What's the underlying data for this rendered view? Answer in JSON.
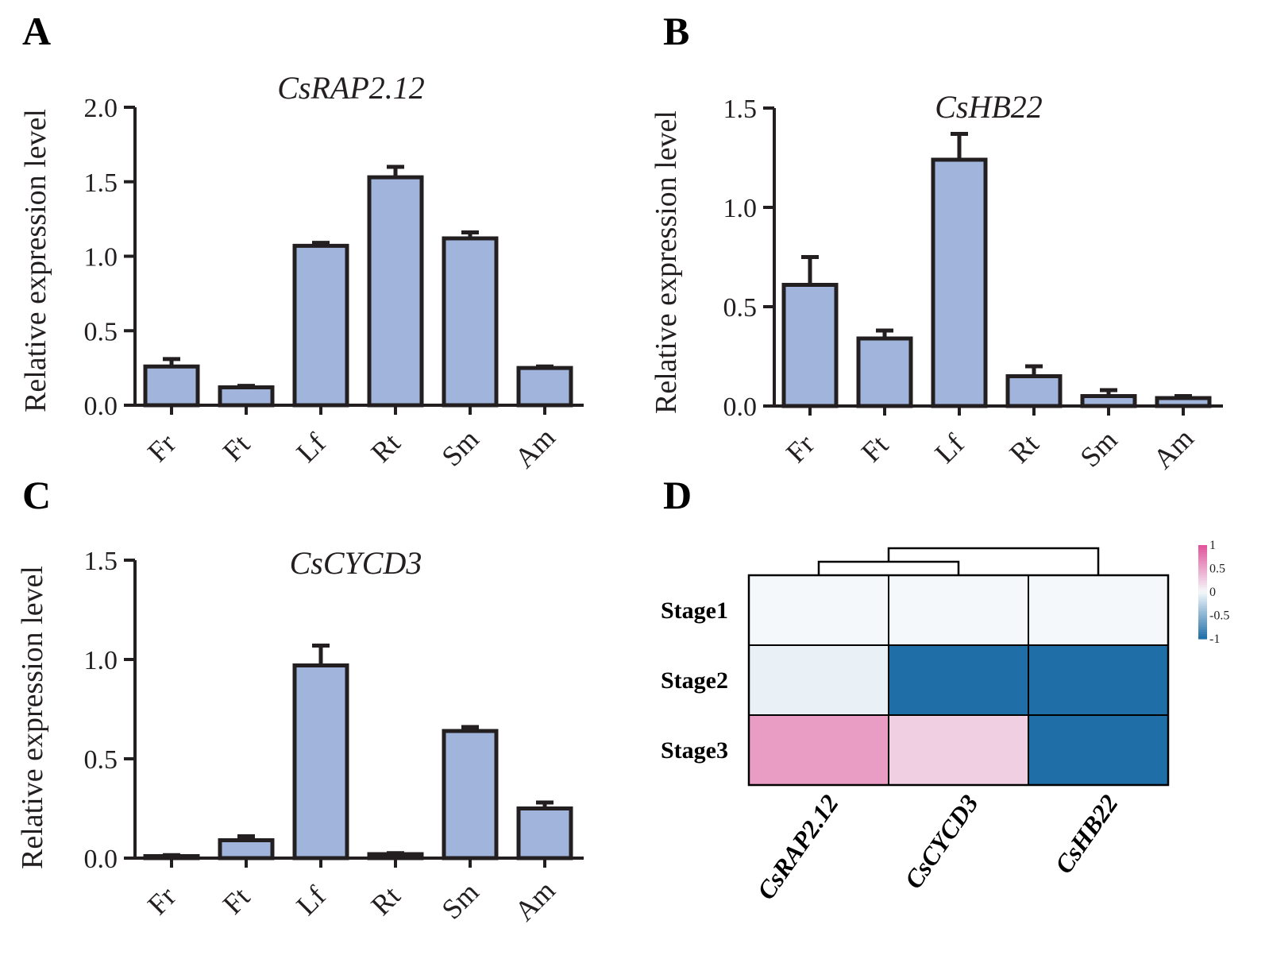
{
  "panels": [
    "A",
    "B",
    "C",
    "D"
  ],
  "colors": {
    "bar_fill": "#a0b4dc",
    "bar_stroke": "#231f20",
    "heat_high": "#e0529a",
    "heat_mid": "#f5f8fa",
    "heat_low": "#1f6ea8"
  },
  "chart_data": [
    {
      "type": "bar",
      "panel": "A",
      "title": "CsRAP2.12",
      "ylabel": "Relative expression level",
      "xlabel": "",
      "categories": [
        "Fr",
        "Ft",
        "Lf",
        "Rt",
        "Sm",
        "Am"
      ],
      "values": [
        0.26,
        0.12,
        1.07,
        1.53,
        1.12,
        0.25
      ],
      "errors": [
        0.05,
        0.01,
        0.02,
        0.07,
        0.04,
        0.01
      ],
      "ylim": [
        0,
        2.0
      ],
      "yticks": [
        "0.0",
        "0.5",
        "1.0",
        "1.5",
        "2.0"
      ],
      "grid": false
    },
    {
      "type": "bar",
      "panel": "B",
      "title": "CsHB22",
      "ylabel": "Relative expression level",
      "xlabel": "",
      "categories": [
        "Fr",
        "Ft",
        "Lf",
        "Rt",
        "Sm",
        "Am"
      ],
      "values": [
        0.61,
        0.34,
        1.24,
        0.15,
        0.05,
        0.04
      ],
      "errors": [
        0.14,
        0.04,
        0.13,
        0.05,
        0.03,
        0.01
      ],
      "ylim": [
        0,
        1.5
      ],
      "yticks": [
        "0.0",
        "0.5",
        "1.0",
        "1.5"
      ],
      "grid": false
    },
    {
      "type": "bar",
      "panel": "C",
      "title": "CsCYCD3",
      "ylabel": "Relative expression level",
      "xlabel": "",
      "categories": [
        "Fr",
        "Ft",
        "Lf",
        "Rt",
        "Sm",
        "Am"
      ],
      "values": [
        0.01,
        0.09,
        0.97,
        0.02,
        0.64,
        0.25
      ],
      "errors": [
        0.005,
        0.02,
        0.1,
        0.005,
        0.02,
        0.03
      ],
      "ylim": [
        0,
        1.5
      ],
      "yticks": [
        "0.0",
        "0.5",
        "1.0",
        "1.5"
      ],
      "grid": false
    },
    {
      "type": "heatmap",
      "panel": "D",
      "rows": [
        "Stage1",
        "Stage2",
        "Stage3"
      ],
      "columns": [
        "CsRAP2.12",
        "CsCYCD3",
        "CsHB22"
      ],
      "values": [
        [
          0.0,
          0.0,
          0.0
        ],
        [
          -0.05,
          -1.0,
          -1.0
        ],
        [
          0.55,
          0.25,
          -1.0
        ]
      ],
      "color_scale": {
        "min": -1,
        "max": 1,
        "ticks": [
          "1",
          "0.5",
          "0",
          "-0.5",
          "-1"
        ]
      },
      "dendrogram": "columns"
    }
  ]
}
